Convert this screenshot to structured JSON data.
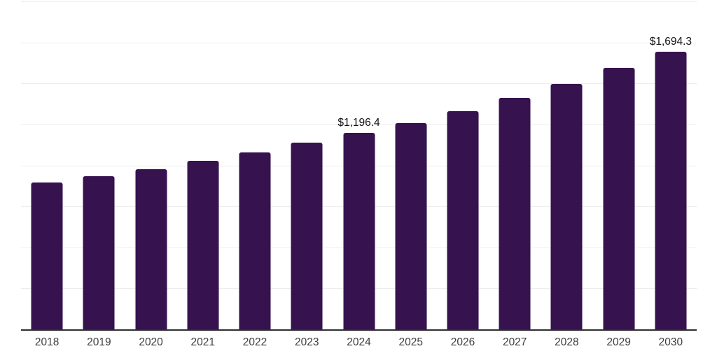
{
  "chart_data": {
    "type": "bar",
    "title": "",
    "xlabel": "",
    "ylabel": "",
    "categories": [
      "2018",
      "2019",
      "2020",
      "2021",
      "2022",
      "2023",
      "2024",
      "2025",
      "2026",
      "2027",
      "2028",
      "2029",
      "2030"
    ],
    "values": [
      895,
      934,
      977,
      1028,
      1079,
      1138,
      1196.4,
      1260,
      1332,
      1410,
      1498,
      1594,
      1694.3
    ],
    "data_labels": {
      "2024": "$1,196.4",
      "2030": "$1,694.3"
    },
    "ylim": [
      0,
      2000
    ],
    "grid_step": 250,
    "grid": "horizontal",
    "legend": "none",
    "y_axis_labels_visible": false,
    "colors": {
      "bar": "#36124F",
      "grid": "#ededed",
      "axis": "#2e2e2e",
      "tick_label": "#3d3d3d",
      "data_label": "#111111",
      "background": "#ffffff"
    }
  }
}
